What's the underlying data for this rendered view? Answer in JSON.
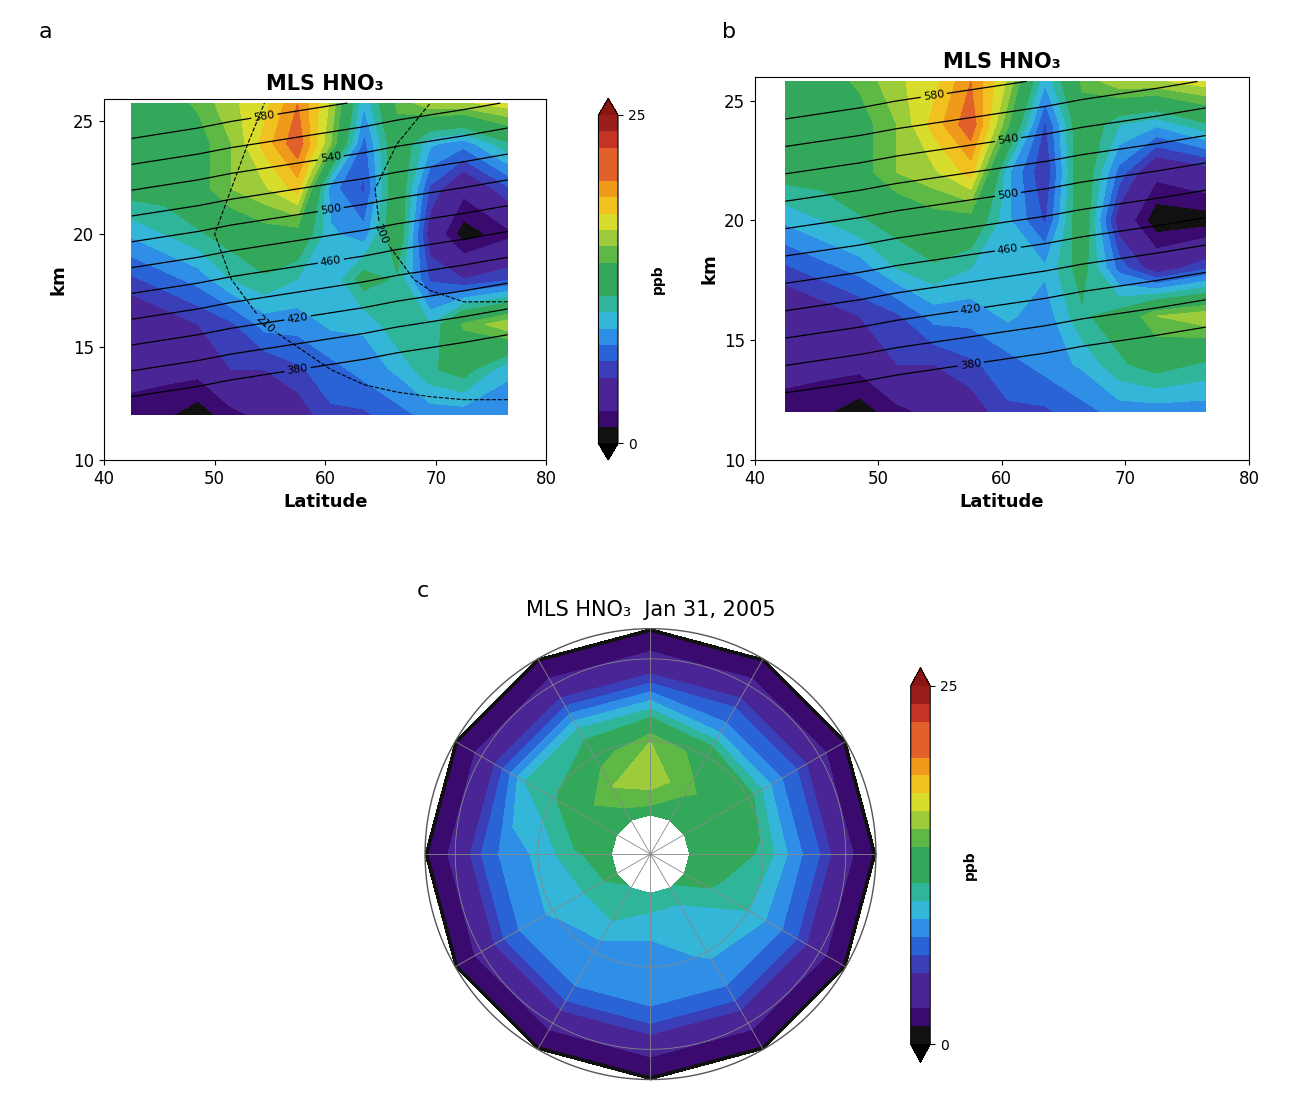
{
  "chart_data": [
    {
      "type": "contour",
      "panel": "a",
      "title": "MLS HNO₃",
      "xlabel": "Latitude",
      "ylabel": "km",
      "xlim": [
        40,
        80
      ],
      "xticks": [
        40,
        50,
        60,
        70,
        80
      ],
      "ylim": [
        10,
        26
      ],
      "yticks": [
        10,
        15,
        20,
        25
      ],
      "x": [
        42.5,
        45.5,
        48.5,
        51.5,
        54.5,
        57.5,
        60.5,
        63.5,
        66.5,
        69.5,
        72.5,
        76.5
      ],
      "y": [
        12,
        14,
        16,
        18,
        20,
        22,
        24,
        25.8
      ],
      "hno3": [
        [
          2,
          1.5,
          0.5,
          2,
          3,
          4,
          6,
          6,
          7,
          8,
          8,
          8
        ],
        [
          3,
          3,
          3,
          5,
          5,
          6,
          7,
          8,
          9,
          11,
          12,
          9
        ],
        [
          3,
          4,
          5,
          6,
          8,
          8,
          9,
          9,
          11,
          10,
          14,
          16
        ],
        [
          6,
          7,
          8,
          10,
          11,
          10,
          9,
          12,
          11,
          6,
          5,
          6
        ],
        [
          9,
          10,
          11,
          12,
          13,
          13,
          9,
          8,
          13,
          4,
          0.5,
          2
        ],
        [
          12,
          12,
          13,
          15,
          16,
          18,
          8,
          6,
          13,
          6,
          3,
          6
        ],
        [
          12,
          12,
          13,
          15,
          18,
          21,
          15,
          7,
          13,
          9,
          8,
          11
        ],
        [
          12,
          13,
          14,
          16,
          17,
          20,
          16,
          9,
          14,
          16,
          16,
          17
        ]
      ],
      "theta": [
        [
          366,
          362,
          358,
          353,
          349,
          345,
          341,
          337,
          332,
          328,
          324,
          318
        ],
        [
          401,
          397,
          393,
          388,
          384,
          380,
          376,
          372,
          367,
          363,
          359,
          353
        ],
        [
          436,
          432,
          428,
          423,
          419,
          415,
          411,
          407,
          402,
          398,
          394,
          388
        ],
        [
          471,
          467,
          463,
          458,
          454,
          450,
          446,
          442,
          437,
          433,
          429,
          423
        ],
        [
          506,
          502,
          498,
          493,
          489,
          485,
          481,
          477,
          472,
          468,
          464,
          458
        ],
        [
          541,
          537,
          533,
          528,
          524,
          520,
          516,
          512,
          507,
          503,
          499,
          493
        ],
        [
          576,
          572,
          568,
          563,
          559,
          555,
          551,
          547,
          542,
          538,
          534,
          528
        ],
        [
          607,
          603,
          599,
          594,
          590,
          586,
          582,
          578,
          573,
          569,
          565,
          559
        ]
      ],
      "theta_levels": [
        380,
        400,
        420,
        440,
        460,
        480,
        500,
        520,
        540,
        560,
        580
      ],
      "theta_labeled": [
        380,
        420,
        460,
        500,
        540,
        580
      ],
      "temperature": [
        [
          218,
          218,
          217,
          216,
          215,
          214,
          213,
          212,
          212,
          212,
          212,
          212
        ],
        [
          216,
          215,
          214,
          213,
          212,
          211,
          210,
          209,
          208,
          207,
          206,
          206
        ],
        [
          214,
          213,
          212,
          211,
          210,
          209,
          207,
          206,
          204,
          203,
          202,
          202
        ],
        [
          213,
          212,
          211,
          210,
          209,
          207,
          205,
          203,
          201,
          199,
          198,
          198
        ],
        [
          213,
          212,
          211,
          209,
          208,
          206,
          204,
          201,
          199,
          196,
          194,
          194
        ],
        [
          214,
          213,
          211,
          210,
          208,
          206,
          203,
          201,
          198,
          196,
          195,
          195
        ],
        [
          215,
          214,
          212,
          211,
          209,
          207,
          205,
          202,
          200,
          198,
          197,
          197
        ],
        [
          216,
          215,
          214,
          212,
          210,
          208,
          206,
          204,
          202,
          200,
          199,
          199
        ]
      ],
      "temperature_levels": [
        200,
        210
      ],
      "colorbar": {
        "range": [
          0,
          25
        ],
        "ticks": [
          0,
          25
        ],
        "label": "ppb"
      }
    },
    {
      "type": "contour",
      "panel": "b",
      "title": "MLS HNO₃",
      "xlabel": "Latitude",
      "ylabel": "km",
      "xlim": [
        40,
        80
      ],
      "xticks": [
        40,
        50,
        60,
        70,
        80
      ],
      "ylim": [
        10,
        26
      ],
      "yticks": [
        10,
        15,
        20,
        25
      ],
      "x": [
        42.5,
        45.5,
        48.5,
        51.5,
        54.5,
        57.5,
        60.5,
        63.5,
        66.5,
        69.5,
        72.5,
        76.5
      ],
      "y": [
        12,
        14,
        16,
        18,
        20,
        22,
        24,
        25.8
      ],
      "hno3": [
        [
          2,
          1.5,
          0.5,
          2,
          3,
          4,
          6,
          6,
          7,
          8,
          8,
          8
        ],
        [
          3,
          3,
          3,
          5,
          5,
          6,
          7,
          8,
          9,
          11,
          12,
          11
        ],
        [
          3,
          4,
          5,
          6,
          8,
          8,
          9,
          8,
          11,
          12,
          15,
          16
        ],
        [
          6,
          7,
          8,
          10,
          11,
          10,
          9,
          9,
          12,
          7,
          4,
          6
        ],
        [
          9,
          10,
          11,
          12,
          13,
          13,
          9,
          6,
          13,
          4,
          0.3,
          0.5
        ],
        [
          12,
          12,
          13,
          15,
          16,
          18,
          9,
          5,
          13,
          7,
          3,
          4
        ],
        [
          12,
          12,
          13,
          15,
          18,
          21,
          14,
          6,
          13,
          10,
          9,
          11
        ],
        [
          12,
          13,
          14,
          16,
          17,
          20,
          16,
          9,
          14,
          16,
          16,
          17
        ]
      ],
      "theta": [
        [
          366,
          362,
          358,
          353,
          349,
          345,
          341,
          337,
          332,
          328,
          324,
          318
        ],
        [
          401,
          397,
          393,
          388,
          384,
          380,
          376,
          372,
          367,
          363,
          359,
          353
        ],
        [
          436,
          432,
          428,
          423,
          419,
          415,
          411,
          407,
          402,
          398,
          394,
          388
        ],
        [
          471,
          467,
          463,
          458,
          454,
          450,
          446,
          442,
          437,
          433,
          429,
          423
        ],
        [
          506,
          502,
          498,
          493,
          489,
          485,
          481,
          477,
          472,
          468,
          464,
          458
        ],
        [
          541,
          537,
          533,
          528,
          524,
          520,
          516,
          512,
          507,
          503,
          499,
          493
        ],
        [
          576,
          572,
          568,
          563,
          559,
          555,
          551,
          547,
          542,
          538,
          534,
          528
        ],
        [
          607,
          603,
          599,
          594,
          590,
          586,
          582,
          578,
          573,
          569,
          565,
          559
        ]
      ],
      "theta_levels": [
        380,
        400,
        420,
        440,
        460,
        480,
        500,
        520,
        540,
        560,
        580
      ],
      "theta_labeled": [
        380,
        420,
        460,
        500,
        540,
        580
      ]
    },
    {
      "type": "map",
      "panel": "c",
      "title": "MLS HNO₃  Jan 31, 2005",
      "tick_labels": false,
      "lat": [
        0,
        15,
        30,
        40,
        50,
        60,
        70,
        80
      ],
      "lon": [
        -180,
        -150,
        -120,
        -90,
        -60,
        -30,
        0,
        30,
        60,
        90,
        120,
        150
      ],
      "hno3": [
        [
          1,
          1,
          1,
          1,
          1,
          1,
          1,
          1,
          1,
          1,
          1,
          1
        ],
        [
          1.5,
          1.5,
          1.5,
          1.5,
          1.5,
          1.5,
          1.5,
          1.5,
          1.5,
          1.5,
          1.5,
          1.5
        ],
        [
          3,
          3,
          3,
          3,
          3,
          3,
          3,
          3,
          3,
          3,
          3,
          3
        ],
        [
          6,
          6,
          6,
          6,
          6,
          6,
          6,
          6,
          6,
          6,
          6,
          6
        ],
        [
          8,
          8,
          8,
          8,
          8,
          8,
          8,
          8,
          8,
          10,
          10,
          10
        ],
        [
          9,
          9,
          8,
          8,
          9,
          10,
          11,
          12,
          13,
          15,
          13,
          11
        ],
        [
          11,
          10,
          10,
          9,
          9,
          11,
          12,
          13,
          14,
          16,
          15,
          13
        ],
        [
          12,
          12,
          11,
          11,
          11,
          12,
          13,
          13,
          13,
          13,
          13,
          12
        ]
      ],
      "colorbar": {
        "range": [
          0,
          25
        ],
        "ticks": [
          0,
          25
        ],
        "label": "ppb"
      }
    }
  ]
}
